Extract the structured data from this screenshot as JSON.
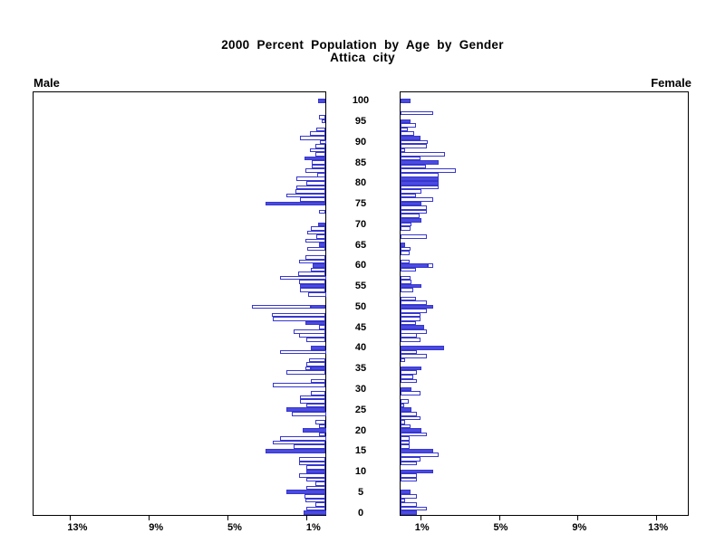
{
  "title": {
    "line1": "2000 Percent Population by Age by Gender",
    "line2": "Attica city"
  },
  "panels": {
    "left_header": "Male",
    "right_header": "Female"
  },
  "colors": {
    "bar_fill_highlight": "#4b4be0",
    "bar_outline": "#3737cf",
    "bar_fill_plain": "#ffffff",
    "frame": "#000000",
    "background": "#ffffff",
    "text": "#000000"
  },
  "chart_data": {
    "type": "bar",
    "subtype": "population-pyramid",
    "title": "2000 Percent Population by Age by Gender",
    "subtitle": "Attica city",
    "orientation": "horizontal-mirrored",
    "age_min": 0,
    "age_max": 100,
    "age_tick_step": 5,
    "age_tick_labels": [
      "0",
      "5",
      "10",
      "15",
      "20",
      "25",
      "30",
      "35",
      "40",
      "45",
      "50",
      "55",
      "60",
      "65",
      "70",
      "75",
      "80",
      "85",
      "90",
      "95",
      "100"
    ],
    "x_axis": {
      "tick_values": [
        1,
        5,
        9,
        13
      ],
      "left_tick_labels": [
        "13%",
        "9%",
        "5%",
        "1%"
      ],
      "right_tick_labels": [
        "1%",
        "5%",
        "9%",
        "13%"
      ],
      "max_percent": 14.9,
      "grid": false
    },
    "legend_position": "none",
    "series": [
      {
        "name": "Male",
        "side": "left",
        "values": [
          1.15,
          1.0,
          0.55,
          1.05,
          1.1,
          2.0,
          1.0,
          0.55,
          1.0,
          1.35,
          1.0,
          1.0,
          1.35,
          1.35,
          0,
          3.05,
          1.65,
          2.7,
          2.35,
          0.35,
          1.2,
          0.35,
          0.55,
          0,
          1.75,
          2.0,
          1.0,
          1.3,
          1.3,
          0.75,
          0,
          2.7,
          0.75,
          0,
          2.0,
          1.05,
          1.0,
          0.85,
          0,
          2.35,
          0.75,
          0,
          1.0,
          1.35,
          1.65,
          0.35,
          1.05,
          2.7,
          2.75,
          0,
          3.75,
          0,
          0,
          0.9,
          1.3,
          1.3,
          1.35,
          2.35,
          1.4,
          0.75,
          0.65,
          1.35,
          1.05,
          0,
          0.95,
          0.35,
          1.05,
          0.5,
          0.95,
          0.75,
          0.4,
          0,
          0,
          0.35,
          0,
          3.05,
          1.3,
          2.0,
          1.55,
          1.5,
          1.0,
          1.5,
          0.45,
          1.05,
          0.7,
          0.7,
          1.1,
          0.55,
          0.8,
          0.55,
          0.3,
          1.3,
          0.8,
          0.5,
          0,
          0.2,
          0.35,
          0,
          0,
          0,
          0.4
        ],
        "highlighted_blue_portion_by_age": {
          "0": 1.15,
          "5": 2.0,
          "10": 1.0,
          "15": 3.05,
          "20": 1.2,
          "25": 2.0,
          "35": 0.75,
          "40": 0.75,
          "46": 1.05,
          "50": 0.75,
          "55": 1.3,
          "60": 0.65,
          "65": 0.35,
          "70": 0.4,
          "75": 3.05,
          "86": 1.1,
          "100": 0.4
        }
      },
      {
        "name": "Female",
        "side": "right",
        "values": [
          0.85,
          1.35,
          0.85,
          0.25,
          0.85,
          0.5,
          0,
          0,
          0.85,
          0.85,
          1.65,
          0,
          0.85,
          1.0,
          1.95,
          1.65,
          0.45,
          0.45,
          0.45,
          1.35,
          1.05,
          0.5,
          0.25,
          1.0,
          0.85,
          0.55,
          0.2,
          0.4,
          0,
          1.0,
          0.55,
          0,
          0.85,
          0.65,
          0.85,
          1.05,
          0,
          0.25,
          1.35,
          0.85,
          2.2,
          0,
          1.0,
          0.85,
          1.35,
          1.2,
          0.8,
          1.0,
          1.0,
          1.35,
          1.65,
          1.35,
          0.8,
          0,
          0.65,
          1.05,
          0.55,
          0.5,
          0,
          0.8,
          1.65,
          0.45,
          0,
          0.45,
          0.5,
          0.25,
          0,
          1.35,
          0,
          0.5,
          0.55,
          1.05,
          0.95,
          1.35,
          1.35,
          1.05,
          1.65,
          0.8,
          1.05,
          1.95,
          1.95,
          1.95,
          1.95,
          2.8,
          1.3,
          1.95,
          1.0,
          2.25,
          0.25,
          1.35,
          1.4,
          1.0,
          0.7,
          0.35,
          0.8,
          0.5,
          0,
          1.65,
          0,
          0,
          0.5
        ],
        "highlighted_blue_portion_by_age": {
          "0": 0.85,
          "5": 0.5,
          "10": 1.65,
          "15": 1.65,
          "20": 1.05,
          "25": 0.55,
          "30": 0.55,
          "35": 1.05,
          "40": 2.2,
          "45": 1.2,
          "50": 1.65,
          "55": 1.05,
          "60": 1.4,
          "65": 0.25,
          "71": 1.05,
          "75": 1.05,
          "80": 1.95,
          "81": 1.95,
          "85": 1.95,
          "91": 1.0,
          "95": 0.5,
          "100": 0.5
        }
      }
    ],
    "notes": "Bars are single-year-of-age percents. Solid blue segments are drawn from the axis outward; remaining value drawn as white bar with blue outline."
  }
}
